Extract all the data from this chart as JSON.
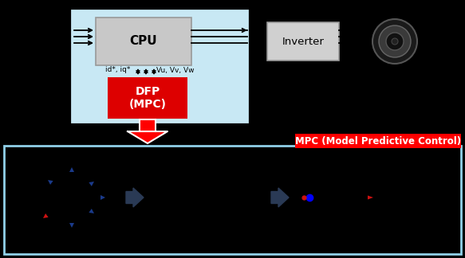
{
  "bg_color": "#000000",
  "top_panel_bg": "#c8e8f4",
  "cpu_box_color": "#c8c8c8",
  "dfp_box_color": "#dd0000",
  "inverter_box_color": "#d0d0d0",
  "mpc_label_bg": "#dd0000",
  "mpc_label_text": "MPC (Model Predictive Control)",
  "cpu_text": "CPU",
  "dfp_text": "DFP\n(MPC)",
  "inverter_text": "Inverter",
  "id_iq_text": "id*, iq*",
  "vu_vv_vw_text": "Vu, Vv, Vw",
  "bottom_border_color": "#90d0e8",
  "arrow_blue": "#1a3a8a",
  "arrow_red": "#cc1111",
  "arrow_dark": "#2a3a55",
  "line_color": "#111111",
  "top_line_color": "#000000"
}
